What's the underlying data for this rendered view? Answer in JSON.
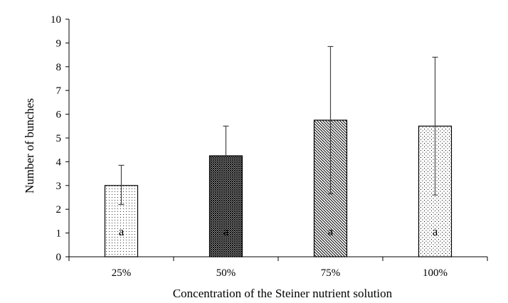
{
  "chart_data": {
    "type": "bar",
    "categories": [
      "25%",
      "50%",
      "75%",
      "100%"
    ],
    "values": [
      3.0,
      4.25,
      5.75,
      5.5
    ],
    "error_upper": [
      3.85,
      5.5,
      8.85,
      8.4
    ],
    "error_lower": [
      2.2,
      4.25,
      2.65,
      2.6
    ],
    "significance_labels": [
      "a",
      "a",
      "a",
      "a"
    ],
    "bar_patterns": [
      "fine-dots",
      "dense-crosshatch",
      "diagonal-lines",
      "coarse-dots"
    ],
    "xlabel": "Concentration of the Steiner nutrient solution",
    "ylabel": "Number of bunches",
    "ylim": [
      0,
      10
    ],
    "yticks": [
      "0",
      "1",
      "2",
      "3",
      "4",
      "5",
      "6",
      "7",
      "8",
      "9",
      "10"
    ],
    "grid": false,
    "legend": "none",
    "colors": {
      "bar_stroke": "#000000",
      "pattern": "#000000",
      "background": "#ffffff",
      "error_bar": "#444444"
    }
  }
}
